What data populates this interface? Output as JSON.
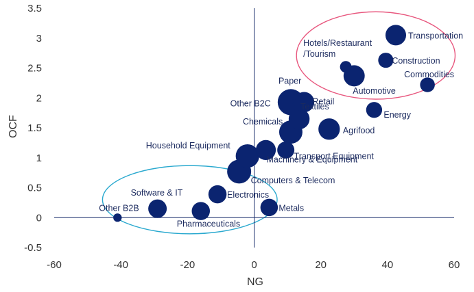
{
  "chart_data": {
    "type": "scatter",
    "variant": "bubble",
    "title": "",
    "xlabel": "NG",
    "ylabel": "OCF",
    "xlim": [
      -60,
      60
    ],
    "ylim": [
      -0.5,
      3.5
    ],
    "xticks": [
      -60,
      -40,
      -20,
      0,
      20,
      40,
      60
    ],
    "yticks": [
      -0.5,
      0,
      0.5,
      1,
      1.5,
      2,
      2.5,
      3,
      3.5
    ],
    "grid": false,
    "legend": "none",
    "colors": {
      "bubble": "#0b2470",
      "ellipse_top": "#e8577e",
      "ellipse_bottom": "#2aa9cf",
      "axis": "#1a2e6c"
    },
    "points": [
      {
        "label": "Transportation",
        "x": 42.5,
        "y": 3.05,
        "size": 1.45
      },
      {
        "label": "Hotels/Restaurant /Tourism",
        "x": 27.5,
        "y": 2.52,
        "size": 0.3
      },
      {
        "label": "Construction",
        "x": 39.5,
        "y": 2.63,
        "size": 0.65
      },
      {
        "label": "Automotive",
        "x": 30,
        "y": 2.37,
        "size": 1.55
      },
      {
        "label": "Commodities",
        "x": 52,
        "y": 2.22,
        "size": 0.6
      },
      {
        "label": "Paper",
        "x": 11,
        "y": 1.93,
        "size": 2.6
      },
      {
        "label": "Retail",
        "x": 15,
        "y": 1.93,
        "size": 1.4
      },
      {
        "label": "Other B2C",
        "x": 9.5,
        "y": 1.93,
        "size": 0.55
      },
      {
        "label": "Textiles",
        "x": 13.5,
        "y": 1.65,
        "size": 1.5
      },
      {
        "label": "Energy",
        "x": 36,
        "y": 1.8,
        "size": 0.75
      },
      {
        "label": "Chemicals",
        "x": 11,
        "y": 1.43,
        "size": 1.95
      },
      {
        "label": "Agrifood",
        "x": 22.5,
        "y": 1.48,
        "size": 1.6
      },
      {
        "label": "Household Equipment",
        "x": -2,
        "y": 1.03,
        "size": 2.0
      },
      {
        "label": "Transport Equipment",
        "x": 9.5,
        "y": 1.13,
        "size": 0.9
      },
      {
        "label": "Machinery & Equipment",
        "x": 3.5,
        "y": 1.13,
        "size": 1.35
      },
      {
        "label": "Computers & Telecom",
        "x": -4.5,
        "y": 0.77,
        "size": 2.1
      },
      {
        "label": "Electronics",
        "x": -11,
        "y": 0.39,
        "size": 1.05
      },
      {
        "label": "Metals",
        "x": 4.5,
        "y": 0.17,
        "size": 0.95
      },
      {
        "label": "Software & IT",
        "x": -29,
        "y": 0.15,
        "size": 1.1
      },
      {
        "label": "Pharmaceuticals",
        "x": -16,
        "y": 0.11,
        "size": 1.05
      },
      {
        "label": "Other B2B",
        "x": -41,
        "y": 0.0,
        "size": 0.1
      }
    ],
    "ellipses": [
      {
        "cx": 36.5,
        "cy": 2.71,
        "rx": 23.8,
        "ry": 0.73,
        "color": "ellipse_top"
      },
      {
        "cx": -19.3,
        "cy": 0.3,
        "rx": 26.2,
        "ry": 0.57,
        "color": "ellipse_bottom"
      }
    ]
  }
}
